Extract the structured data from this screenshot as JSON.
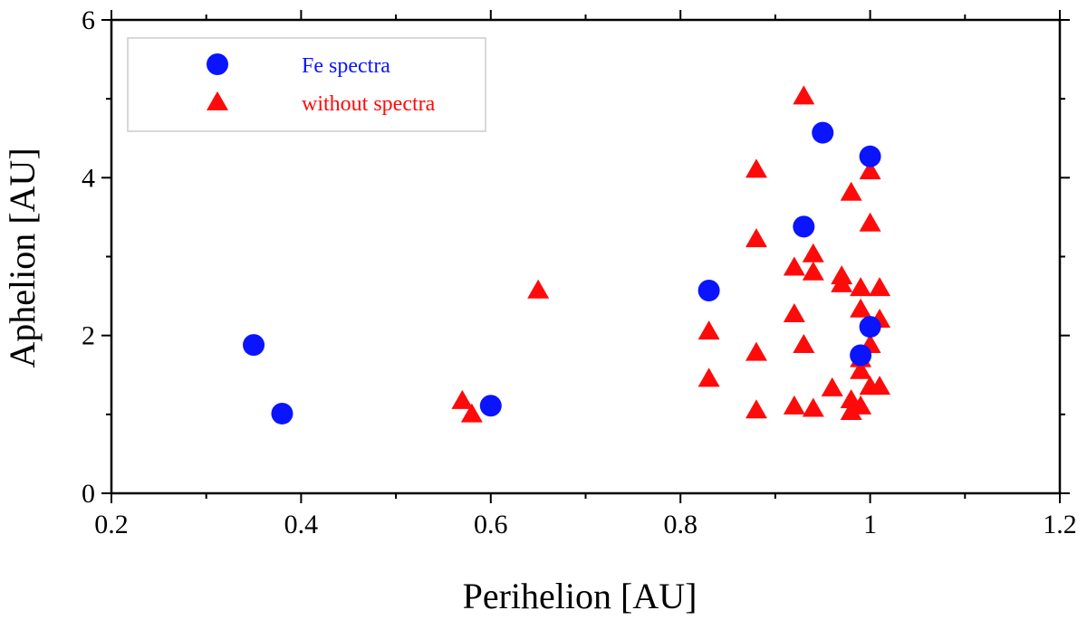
{
  "chart_data": {
    "type": "scatter",
    "title": "",
    "xlabel": "Perihelion [AU]",
    "ylabel": "Aphelion [AU]",
    "xlim": [
      0.2,
      1.2
    ],
    "ylim": [
      0,
      6
    ],
    "xticks": [
      0.2,
      0.4,
      0.6,
      0.8,
      1.0,
      1.2
    ],
    "xtick_labels": [
      "0.2",
      "0.4",
      "0.6",
      "0.8",
      "1",
      "1.2"
    ],
    "xminor": [
      0.3,
      0.5,
      0.7,
      0.9,
      1.1
    ],
    "yticks": [
      0,
      2,
      4,
      6
    ],
    "ytick_labels": [
      "0",
      "2",
      "4",
      "6"
    ],
    "yminor": [
      1,
      3,
      5
    ],
    "grid": false,
    "legend_position": "top-left",
    "series": [
      {
        "name": "Fe spectra",
        "marker": "circle",
        "color": "#0a14ff",
        "points": [
          [
            0.35,
            1.88
          ],
          [
            0.38,
            1.01
          ],
          [
            0.6,
            1.11
          ],
          [
            0.83,
            2.57
          ],
          [
            0.93,
            3.38
          ],
          [
            0.95,
            4.57
          ],
          [
            1.0,
            4.27
          ],
          [
            1.0,
            2.11
          ],
          [
            0.99,
            1.75
          ]
        ]
      },
      {
        "name": "without spectra",
        "marker": "triangle",
        "color": "#ff0a0a",
        "points": [
          [
            0.57,
            1.17
          ],
          [
            0.58,
            1.0
          ],
          [
            0.65,
            2.57
          ],
          [
            0.83,
            2.05
          ],
          [
            0.83,
            1.45
          ],
          [
            0.88,
            4.1
          ],
          [
            0.88,
            3.22
          ],
          [
            0.88,
            1.78
          ],
          [
            0.88,
            1.05
          ],
          [
            0.92,
            2.86
          ],
          [
            0.92,
            2.27
          ],
          [
            0.92,
            1.1
          ],
          [
            0.93,
            5.03
          ],
          [
            0.93,
            1.88
          ],
          [
            0.94,
            3.03
          ],
          [
            0.94,
            2.8
          ],
          [
            0.94,
            1.07
          ],
          [
            0.96,
            1.33
          ],
          [
            0.97,
            2.75
          ],
          [
            0.97,
            2.65
          ],
          [
            0.98,
            3.81
          ],
          [
            0.98,
            1.18
          ],
          [
            0.98,
            1.03
          ],
          [
            0.99,
            2.6
          ],
          [
            0.99,
            2.33
          ],
          [
            0.99,
            1.7
          ],
          [
            0.99,
            1.55
          ],
          [
            0.99,
            1.1
          ],
          [
            1.0,
            4.08
          ],
          [
            1.0,
            3.42
          ],
          [
            1.0,
            1.88
          ],
          [
            1.0,
            1.35
          ],
          [
            1.01,
            2.6
          ],
          [
            1.01,
            2.2
          ],
          [
            1.01,
            1.35
          ]
        ]
      }
    ]
  }
}
